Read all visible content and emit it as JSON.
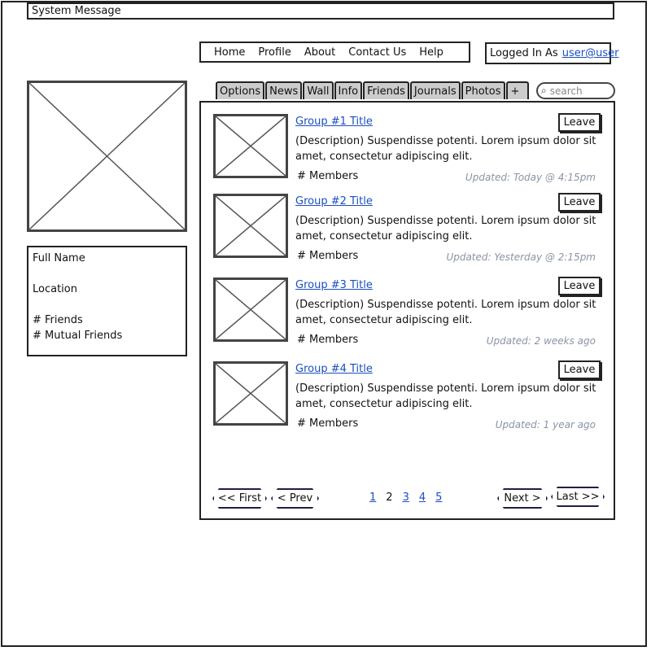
{
  "system_message": "System Message",
  "nav": [
    "Home",
    "Profile",
    "About",
    "Contact Us",
    "Help"
  ],
  "login": {
    "label": "Logged In As",
    "user": "user@user"
  },
  "profile": {
    "full_name": "Full Name",
    "location": "Location",
    "friends": "# Friends",
    "mutual_friends": "# Mutual Friends"
  },
  "tabs": [
    "Options",
    "News",
    "Wall",
    "Info",
    "Friends",
    "Journals",
    "Photos",
    "+"
  ],
  "search": {
    "placeholder": "search"
  },
  "groups": [
    {
      "title": "Group #1 Title",
      "description": "(Description) Suspendisse potenti. Lorem ipsum dolor sit amet, consectetur adipiscing elit.",
      "members": "# Members",
      "updated": "Updated: Today @ 4:15pm",
      "action": "Leave"
    },
    {
      "title": "Group #2 Title",
      "description": "(Description) Suspendisse potenti. Lorem ipsum dolor sit amet, consectetur adipiscing elit.",
      "members": "# Members",
      "updated": "Updated: Yesterday @ 2:15pm",
      "action": "Leave"
    },
    {
      "title": "Group #3 Title",
      "description": "(Description) Suspendisse potenti. Lorem ipsum dolor sit amet, consectetur adipiscing elit.",
      "members": "# Members",
      "updated": "Updated: 2 weeks ago",
      "action": "Leave"
    },
    {
      "title": "Group #4 Title",
      "description": "(Description) Suspendisse potenti. Lorem ipsum dolor sit amet, consectetur adipiscing elit.",
      "members": "# Members",
      "updated": "Updated: 1 year ago",
      "action": "Leave"
    }
  ],
  "pagination": {
    "first": "<< First",
    "prev": "< Prev",
    "pages": [
      "1",
      "2",
      "3",
      "4",
      "5"
    ],
    "current": "2",
    "next": "Next >",
    "last": "Last >>"
  },
  "colors": {
    "link": "#1a4fbf",
    "tab_bg": "#cccccc",
    "updated_text": "#8a93a5"
  }
}
